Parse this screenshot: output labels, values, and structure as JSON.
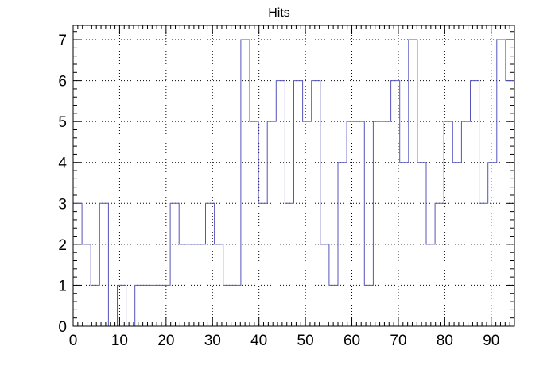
{
  "chart_data": {
    "type": "step",
    "title": "Hits",
    "xlabel": "",
    "ylabel": "",
    "xlim": [
      0,
      95
    ],
    "ylim": [
      0,
      7.35
    ],
    "x_ticks": [
      0,
      10,
      20,
      30,
      40,
      50,
      60,
      70,
      80,
      90
    ],
    "y_ticks": [
      0,
      1,
      2,
      3,
      4,
      5,
      6,
      7
    ],
    "grid": true,
    "line_color": "#5555bb",
    "bin_width": 1.9,
    "values": [
      3,
      2,
      1,
      3,
      0,
      1,
      0,
      1,
      1,
      1,
      1,
      3,
      2,
      2,
      2,
      3,
      2,
      1,
      1,
      7,
      5,
      3,
      5,
      6,
      3,
      6,
      5,
      6,
      2,
      1,
      4,
      5,
      5,
      1,
      5,
      5,
      6,
      4,
      7,
      4,
      2,
      3,
      5,
      4,
      5,
      6,
      3,
      4,
      7,
      6
    ]
  }
}
